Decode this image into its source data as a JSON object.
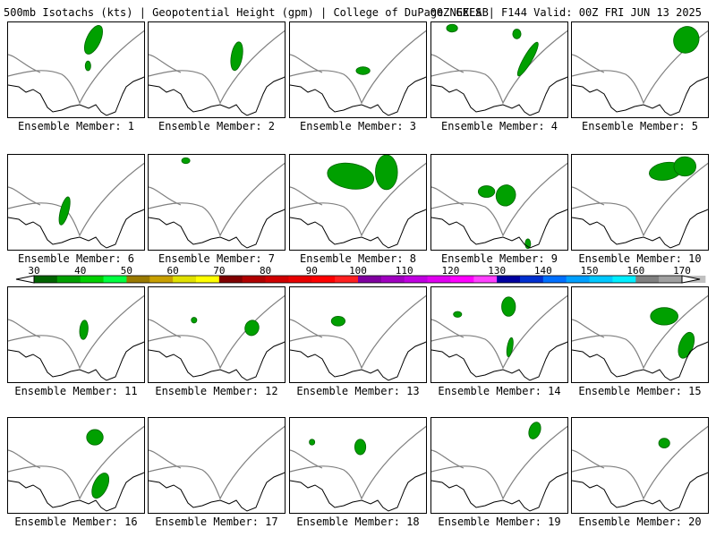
{
  "header": {
    "left": "500mb Isotachs (kts) | Geopotential Height (gpm) | College of DuPage NEXLAB",
    "right": "00Z GEFS | F144 Valid: 00Z FRI JUN 13 2025"
  },
  "members": [
    {
      "label": "Ensemble Member: 1",
      "blobs": [
        [
          0.62,
          0.18,
          0.05,
          0.16,
          25
        ],
        [
          0.58,
          0.45,
          0.02,
          0.05,
          0
        ]
      ]
    },
    {
      "label": "Ensemble Member: 2",
      "blobs": [
        [
          0.64,
          0.35,
          0.04,
          0.15,
          10
        ]
      ]
    },
    {
      "label": "Ensemble Member: 3",
      "blobs": [
        [
          0.53,
          0.5,
          0.05,
          0.04,
          0
        ]
      ]
    },
    {
      "label": "Ensemble Member: 4",
      "blobs": [
        [
          0.7,
          0.38,
          0.03,
          0.2,
          30
        ],
        [
          0.62,
          0.12,
          0.03,
          0.05,
          0
        ],
        [
          0.15,
          0.06,
          0.04,
          0.04,
          0
        ]
      ]
    },
    {
      "label": "Ensemble Member: 5",
      "blobs": [
        [
          0.83,
          0.18,
          0.09,
          0.14,
          30
        ]
      ]
    },
    {
      "label": "Ensemble Member: 6",
      "blobs": [
        [
          0.41,
          0.58,
          0.03,
          0.15,
          15
        ]
      ]
    },
    {
      "label": "Ensemble Member: 7",
      "blobs": [
        [
          0.27,
          0.06,
          0.03,
          0.03,
          0
        ]
      ]
    },
    {
      "label": "Ensemble Member: 8",
      "blobs": [
        [
          0.44,
          0.22,
          0.17,
          0.13,
          10
        ],
        [
          0.7,
          0.18,
          0.08,
          0.18,
          0
        ]
      ]
    },
    {
      "label": "Ensemble Member: 9",
      "blobs": [
        [
          0.4,
          0.38,
          0.06,
          0.06,
          0
        ],
        [
          0.54,
          0.42,
          0.07,
          0.11,
          20
        ],
        [
          0.7,
          0.92,
          0.02,
          0.05,
          0
        ]
      ]
    },
    {
      "label": "Ensemble Member: 10",
      "blobs": [
        [
          0.68,
          0.17,
          0.12,
          0.09,
          -10
        ],
        [
          0.82,
          0.12,
          0.08,
          0.1,
          0
        ]
      ]
    },
    {
      "label": "Ensemble Member: 11",
      "blobs": [
        [
          0.55,
          0.44,
          0.03,
          0.1,
          5
        ]
      ]
    },
    {
      "label": "Ensemble Member: 12",
      "blobs": [
        [
          0.75,
          0.42,
          0.05,
          0.08,
          20
        ],
        [
          0.33,
          0.34,
          0.02,
          0.03,
          0
        ]
      ]
    },
    {
      "label": "Ensemble Member: 13",
      "blobs": [
        [
          0.35,
          0.35,
          0.05,
          0.05,
          0
        ]
      ]
    },
    {
      "label": "Ensemble Member: 14",
      "blobs": [
        [
          0.56,
          0.2,
          0.05,
          0.1,
          0
        ],
        [
          0.57,
          0.62,
          0.02,
          0.1,
          10
        ],
        [
          0.19,
          0.28,
          0.03,
          0.03,
          0
        ]
      ]
    },
    {
      "label": "Ensemble Member: 15",
      "blobs": [
        [
          0.67,
          0.3,
          0.1,
          0.09,
          0
        ],
        [
          0.83,
          0.6,
          0.05,
          0.14,
          20
        ]
      ]
    },
    {
      "label": "Ensemble Member: 16",
      "blobs": [
        [
          0.63,
          0.2,
          0.06,
          0.08,
          0
        ],
        [
          0.67,
          0.7,
          0.05,
          0.14,
          25
        ]
      ]
    },
    {
      "label": "Ensemble Member: 17",
      "blobs": []
    },
    {
      "label": "Ensemble Member: 18",
      "blobs": [
        [
          0.51,
          0.3,
          0.04,
          0.08,
          0
        ],
        [
          0.16,
          0.25,
          0.02,
          0.03,
          0
        ]
      ]
    },
    {
      "label": "Ensemble Member: 19",
      "blobs": [
        [
          0.75,
          0.13,
          0.04,
          0.09,
          20
        ]
      ]
    },
    {
      "label": "Ensemble Member: 20",
      "blobs": [
        [
          0.67,
          0.26,
          0.04,
          0.05,
          0
        ]
      ]
    }
  ],
  "colorbar": {
    "ticks": [
      "30",
      "40",
      "50",
      "60",
      "70",
      "80",
      "90",
      "100",
      "110",
      "120",
      "130",
      "140",
      "150",
      "160",
      "170"
    ],
    "colors": [
      "#006400",
      "#00a000",
      "#00d000",
      "#00ff40",
      "#9a7a00",
      "#c8a000",
      "#e0e000",
      "#ffff00",
      "#800000",
      "#b00000",
      "#d00000",
      "#e80000",
      "#ff0000",
      "#ff2020",
      "#8000a0",
      "#a000c0",
      "#c000e0",
      "#e000f0",
      "#ff00ff",
      "#ff40ff",
      "#0000a0",
      "#0030d0",
      "#0070ff",
      "#00a0ff",
      "#00c8ff",
      "#00eeff",
      "#808080",
      "#a0a0a0",
      "#c0c0c0"
    ]
  }
}
